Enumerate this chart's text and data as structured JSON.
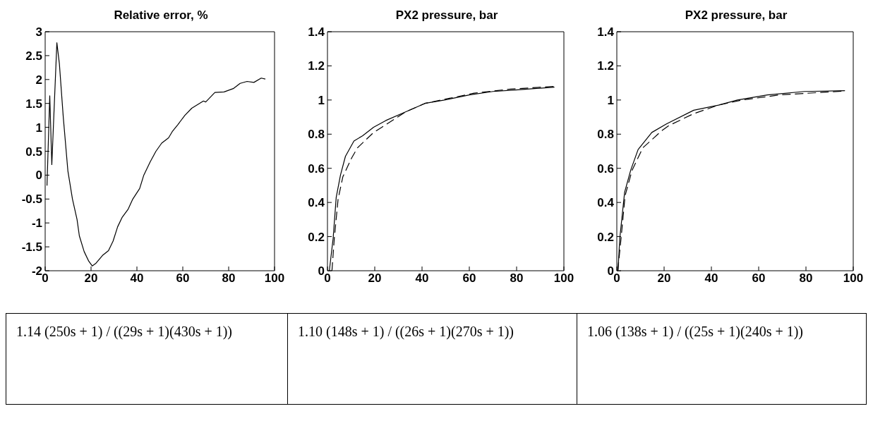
{
  "chart_data": [
    {
      "type": "line",
      "title": "Relative error, %",
      "xlim": [
        0,
        100
      ],
      "xticks": [
        0,
        20,
        40,
        60,
        80,
        100
      ],
      "ylim": [
        -2,
        3
      ],
      "yticks": [
        -2,
        -1.5,
        -1,
        -0.5,
        0,
        0.5,
        1,
        1.5,
        2,
        2.5,
        3
      ],
      "marker": "none",
      "annotations": [
        "1.14 (250s + 1) / ((29s + 1)(430s + 1))"
      ],
      "series": [
        {
          "color": "#000000",
          "line_style": "solid",
          "x": [
            0.8,
            2.0,
            2.9,
            5.1,
            6.2,
            7.9,
            9.9,
            11.9,
            13.9,
            14.9,
            17,
            19,
            20.5,
            22,
            25,
            27.6,
            29.6,
            31.6,
            33.6,
            36.2,
            38.2,
            41.2,
            43,
            45.8,
            48.3,
            50.8,
            53.8,
            55.4,
            57.9,
            60.9,
            63.9,
            69,
            70,
            74,
            78,
            82,
            85,
            88,
            91,
            94.2,
            96
          ],
          "values": [
            -0.22,
            1.66,
            0.22,
            2.77,
            2.33,
            1.21,
            0.09,
            -0.5,
            -0.93,
            -1.27,
            -1.6,
            -1.8,
            -1.9,
            -1.85,
            -1.68,
            -1.58,
            -1.38,
            -1.08,
            -0.88,
            -0.71,
            -0.5,
            -0.28,
            0,
            0.28,
            0.5,
            0.67,
            0.78,
            0.91,
            1.06,
            1.25,
            1.4,
            1.55,
            1.53,
            1.73,
            1.74,
            1.81,
            1.92,
            1.96,
            1.94,
            2.03,
            2.01
          ]
        }
      ]
    },
    {
      "type": "line",
      "title": "PX2 pressure, bar",
      "xlim": [
        0,
        100
      ],
      "xticks": [
        0,
        20,
        40,
        60,
        80,
        100
      ],
      "ylim": [
        0,
        1.4
      ],
      "yticks": [
        0,
        0.2,
        0.4,
        0.6,
        0.8,
        1,
        1.2,
        1.4
      ],
      "marker": "none",
      "annotations": [
        "1.10 (148s + 1) / ((26s + 1)(270s + 1))"
      ],
      "series": [
        {
          "color": "#000000",
          "line_style": "solid",
          "x": [
            0.8,
            1.3,
            2.4,
            3.7,
            5.5,
            7.6,
            11.2,
            14.8,
            19.5,
            24.7,
            33,
            41.2,
            49.5,
            60,
            70,
            80.6,
            96
          ],
          "values": [
            0,
            0.06,
            0.19,
            0.43,
            0.56,
            0.67,
            0.76,
            0.79,
            0.84,
            0.88,
            0.93,
            0.98,
            1.0,
            1.03,
            1.05,
            1.06,
            1.075
          ]
        },
        {
          "color": "#000000",
          "line_style": "dashed",
          "x": [
            1.9,
            2.9,
            4.5,
            6.5,
            10.2,
            12.7,
            19.5,
            23,
            33,
            41.2,
            51.6,
            62,
            77.5,
            96
          ],
          "values": [
            0,
            0.19,
            0.42,
            0.55,
            0.66,
            0.72,
            0.81,
            0.84,
            0.93,
            0.98,
            1.01,
            1.04,
            1.064,
            1.08
          ]
        }
      ]
    },
    {
      "type": "line",
      "title": "PX2 pressure, bar",
      "xlim": [
        0,
        100
      ],
      "xticks": [
        0,
        20,
        40,
        60,
        80,
        100
      ],
      "ylim": [
        0,
        1.4
      ],
      "yticks": [
        0,
        0.2,
        0.4,
        0.6,
        0.8,
        1,
        1.2,
        1.4
      ],
      "marker": "none",
      "annotations": [
        "1.06 (138s + 1) / ((25s + 1)(240s + 1))"
      ],
      "series": [
        {
          "color": "#000000",
          "line_style": "solid",
          "x": [
            0.5,
            1.25,
            3.3,
            5.9,
            9,
            14.8,
            21,
            32.5,
            43,
            51,
            63.7,
            79.4,
            96.5
          ],
          "values": [
            0,
            0.19,
            0.46,
            0.59,
            0.71,
            0.81,
            0.86,
            0.94,
            0.97,
            1.0,
            1.03,
            1.05,
            1.055
          ]
        },
        {
          "color": "#000000",
          "line_style": "dashed",
          "x": [
            0.4,
            1.8,
            3.5,
            6.5,
            11,
            19,
            22,
            32.5,
            43,
            53,
            69,
            96.5
          ],
          "values": [
            0,
            0.19,
            0.44,
            0.59,
            0.72,
            0.82,
            0.85,
            0.92,
            0.97,
            1.0,
            1.03,
            1.053
          ]
        }
      ]
    }
  ]
}
